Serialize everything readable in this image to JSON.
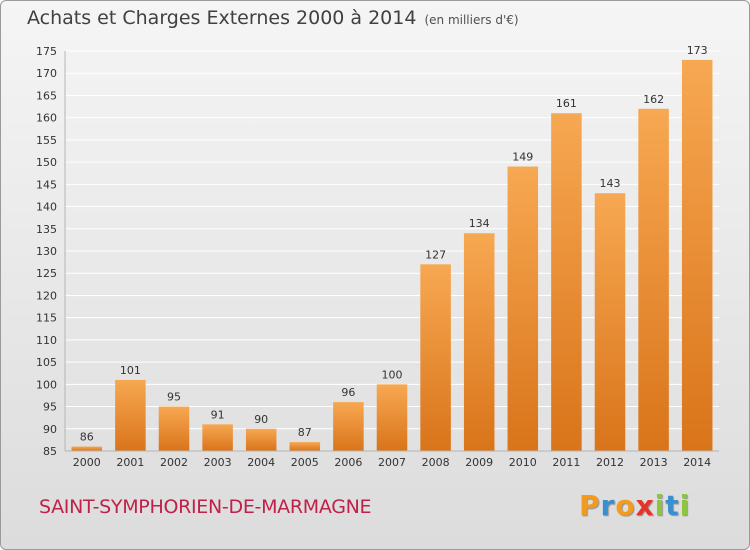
{
  "header": {
    "title": "Achats et Charges Externes 2000 à 2014",
    "unit": "(en milliers d'€)"
  },
  "footer": {
    "commune": "SAINT-SYMPHORIEN-DE-MARMAGNE",
    "brand": "Proxiti",
    "brand_letters": [
      {
        "ch": "P",
        "color": "#f29b1f"
      },
      {
        "ch": "r",
        "color": "#3a8fd0"
      },
      {
        "ch": "o",
        "color": "#f29b1f"
      },
      {
        "ch": "x",
        "color": "#e6332a"
      },
      {
        "ch": "i",
        "color": "#8cc63f"
      },
      {
        "ch": "t",
        "color": "#3a8fd0"
      },
      {
        "ch": "i",
        "color": "#8cc63f"
      }
    ]
  },
  "chart_data": {
    "type": "bar",
    "categories": [
      "2000",
      "2001",
      "2002",
      "2003",
      "2004",
      "2005",
      "2006",
      "2007",
      "2008",
      "2009",
      "2010",
      "2011",
      "2012",
      "2013",
      "2014"
    ],
    "values": [
      86,
      101,
      95,
      91,
      90,
      87,
      96,
      100,
      127,
      134,
      149,
      161,
      143,
      162,
      173
    ],
    "data_labels": [
      "86",
      "101",
      "95",
      "91",
      "90",
      "87",
      "96",
      "100",
      "127",
      "134",
      "149",
      "161",
      "143",
      "162",
      "173"
    ],
    "title": "Achats et Charges Externes 2000 à 2014",
    "xlabel": "",
    "ylabel": "",
    "ylim": [
      85,
      175
    ],
    "yticks": [
      85,
      90,
      95,
      100,
      105,
      110,
      115,
      120,
      125,
      130,
      135,
      140,
      145,
      150,
      155,
      160,
      165,
      170,
      175
    ],
    "grid": true,
    "colors": {
      "bar_top": "#f7a852",
      "bar_bottom": "#d9741a",
      "grid": "#ffffff"
    }
  }
}
